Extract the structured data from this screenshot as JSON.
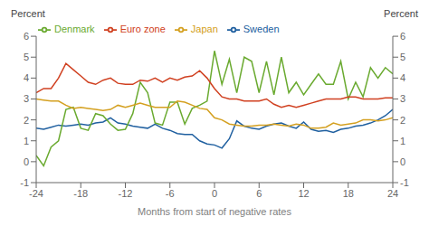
{
  "chart_data": {
    "type": "line",
    "xlabel": "Months from start of negative rates",
    "ylabel": "Percent",
    "y2label": "Percent",
    "x": [
      -24,
      -23,
      -22,
      -21,
      -20,
      -19,
      -18,
      -17,
      -16,
      -15,
      -14,
      -13,
      -12,
      -11,
      -10,
      -9,
      -8,
      -7,
      -6,
      -5,
      -4,
      -3,
      -2,
      -1,
      0,
      1,
      2,
      3,
      4,
      5,
      6,
      7,
      8,
      9,
      10,
      11,
      12,
      13,
      14,
      15,
      16,
      17,
      18,
      19,
      20,
      21,
      22,
      23,
      24
    ],
    "series": [
      {
        "name": "Sweden",
        "color": "#2060a0",
        "values": [
          1.6,
          1.55,
          1.65,
          1.75,
          1.7,
          1.75,
          1.8,
          1.75,
          1.85,
          1.9,
          2.1,
          1.85,
          1.8,
          1.7,
          1.65,
          1.6,
          1.8,
          1.6,
          1.5,
          1.35,
          1.3,
          1.3,
          1.0,
          0.85,
          0.8,
          0.65,
          1.1,
          1.95,
          1.7,
          1.6,
          1.55,
          1.7,
          1.8,
          1.85,
          1.7,
          1.6,
          1.9,
          1.55,
          1.45,
          1.5,
          1.4,
          1.55,
          1.6,
          1.7,
          1.75,
          1.85,
          2.0,
          2.2,
          2.5
        ]
      },
      {
        "name": "Denmark",
        "color": "#6aaa30",
        "values": [
          0.3,
          -0.2,
          0.7,
          1.0,
          2.5,
          2.6,
          1.6,
          1.5,
          2.3,
          2.2,
          1.8,
          1.5,
          1.55,
          2.3,
          3.8,
          3.3,
          1.85,
          1.75,
          2.85,
          2.85,
          1.8,
          2.55,
          2.7,
          2.9,
          5.3,
          3.7,
          4.9,
          3.3,
          5.0,
          4.8,
          3.3,
          4.8,
          3.2,
          5.0,
          3.3,
          3.8,
          3.2,
          3.7,
          4.2,
          3.7,
          3.7,
          4.8,
          3.0,
          3.8,
          3.1,
          4.5,
          4.0,
          4.5,
          4.2
        ]
      },
      {
        "name": "Euro zone",
        "color": "#d04020",
        "values": [
          3.3,
          3.5,
          3.5,
          4.0,
          4.7,
          4.4,
          4.1,
          3.8,
          3.7,
          3.9,
          4.0,
          3.75,
          3.7,
          3.7,
          3.9,
          3.85,
          4.0,
          3.8,
          4.0,
          3.9,
          4.05,
          4.1,
          4.35,
          4.0,
          3.5,
          3.1,
          3.0,
          3.0,
          2.9,
          2.9,
          2.9,
          3.0,
          2.75,
          2.6,
          2.7,
          2.6,
          2.7,
          2.8,
          2.9,
          3.0,
          3.0,
          3.0,
          3.1,
          3.1,
          3.0,
          3.0,
          3.0,
          3.05,
          3.05
        ]
      },
      {
        "name": "Japan",
        "color": "#d4a020",
        "values": [
          3.0,
          2.95,
          2.9,
          2.9,
          2.7,
          2.55,
          2.6,
          2.55,
          2.5,
          2.45,
          2.5,
          2.7,
          2.6,
          2.7,
          2.8,
          2.7,
          2.6,
          2.6,
          2.6,
          2.9,
          2.85,
          2.7,
          2.55,
          2.5,
          2.1,
          2.0,
          1.8,
          1.75,
          1.7,
          1.7,
          1.75,
          1.75,
          1.8,
          1.75,
          1.7,
          1.8,
          1.75,
          1.6,
          1.6,
          1.65,
          1.85,
          1.75,
          1.8,
          1.85,
          2.0,
          2.0,
          1.95,
          2.0,
          2.1
        ]
      }
    ],
    "xlim": [
      -24,
      24
    ],
    "xticks": [
      -24,
      -18,
      -12,
      -6,
      0,
      6,
      12,
      18,
      24
    ],
    "ylim": [
      -1,
      6
    ],
    "yticks": [
      -1,
      0,
      1,
      2,
      3,
      4,
      5,
      6
    ],
    "y2lim": [
      -1,
      6
    ],
    "y2ticks": [
      -1,
      0,
      1,
      2,
      3,
      4,
      5,
      6
    ],
    "grid": false,
    "legend": "upper left"
  }
}
